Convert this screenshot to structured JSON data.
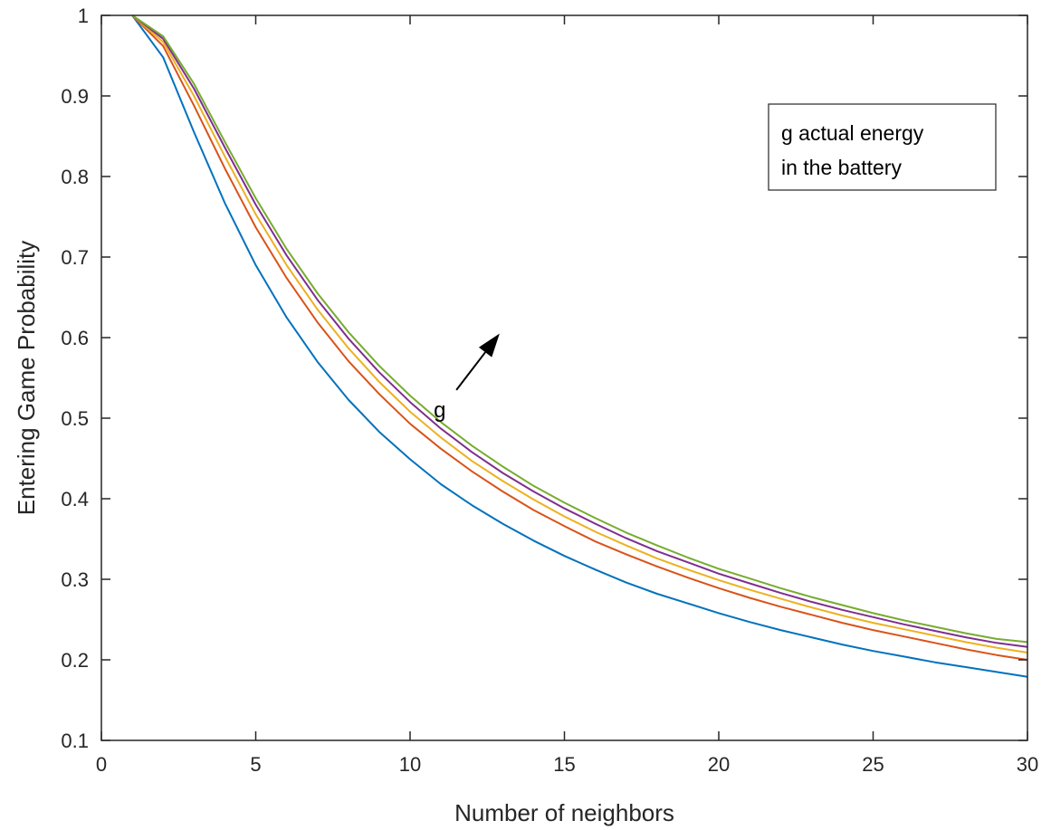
{
  "chart_data": {
    "type": "line",
    "title": "",
    "xlabel": "Number of neighbors",
    "ylabel": "Entering Game Probability",
    "xlim": [
      0,
      30
    ],
    "ylim": [
      0.1,
      1
    ],
    "x_ticks": [
      "0",
      "5",
      "10",
      "15",
      "20",
      "25",
      "30"
    ],
    "y_ticks": [
      "0.1",
      "0.2",
      "0.3",
      "0.4",
      "0.5",
      "0.6",
      "0.7",
      "0.8",
      "0.9",
      "1"
    ],
    "grid": false,
    "legend_box": {
      "lines": [
        "g actual energy",
        "in the battery"
      ],
      "position": "top-right"
    },
    "annotation": {
      "text": "g",
      "arrow": "up-right",
      "arrow_from": [
        11.5,
        0.535
      ],
      "arrow_to": [
        12.9,
        0.605
      ],
      "text_at": [
        11,
        0.51
      ]
    },
    "x": [
      1,
      2,
      3,
      4,
      5,
      6,
      7,
      8,
      9,
      10,
      11,
      12,
      13,
      14,
      15,
      16,
      17,
      18,
      19,
      20,
      21,
      22,
      23,
      24,
      25,
      26,
      27,
      28,
      29,
      30
    ],
    "series": [
      {
        "color": "#0072BD",
        "values": [
          1.0,
          0.948,
          0.855,
          0.767,
          0.69,
          0.625,
          0.57,
          0.523,
          0.483,
          0.449,
          0.418,
          0.392,
          0.369,
          0.348,
          0.329,
          0.312,
          0.296,
          0.282,
          0.27,
          0.258,
          0.247,
          0.237,
          0.228,
          0.219,
          0.211,
          0.204,
          0.197,
          0.191,
          0.185,
          0.179
        ]
      },
      {
        "color": "#D95319",
        "values": [
          1.0,
          0.962,
          0.888,
          0.81,
          0.737,
          0.674,
          0.619,
          0.571,
          0.53,
          0.493,
          0.462,
          0.434,
          0.409,
          0.386,
          0.366,
          0.347,
          0.331,
          0.316,
          0.302,
          0.289,
          0.277,
          0.266,
          0.256,
          0.246,
          0.237,
          0.229,
          0.221,
          0.213,
          0.206,
          0.2
        ]
      },
      {
        "color": "#EDB120",
        "values": [
          1.0,
          0.967,
          0.9,
          0.825,
          0.753,
          0.69,
          0.635,
          0.587,
          0.545,
          0.508,
          0.476,
          0.447,
          0.422,
          0.399,
          0.378,
          0.359,
          0.342,
          0.326,
          0.312,
          0.299,
          0.287,
          0.276,
          0.265,
          0.255,
          0.246,
          0.238,
          0.23,
          0.222,
          0.215,
          0.209
        ]
      },
      {
        "color": "#7E2F8E",
        "values": [
          1.0,
          0.971,
          0.909,
          0.836,
          0.765,
          0.702,
          0.647,
          0.599,
          0.557,
          0.52,
          0.487,
          0.458,
          0.432,
          0.409,
          0.388,
          0.369,
          0.351,
          0.335,
          0.321,
          0.307,
          0.295,
          0.283,
          0.272,
          0.262,
          0.253,
          0.244,
          0.236,
          0.228,
          0.221,
          0.216
        ]
      },
      {
        "color": "#77AC30",
        "values": [
          1.0,
          0.974,
          0.915,
          0.843,
          0.773,
          0.71,
          0.655,
          0.607,
          0.565,
          0.528,
          0.495,
          0.466,
          0.44,
          0.416,
          0.395,
          0.376,
          0.358,
          0.342,
          0.327,
          0.313,
          0.301,
          0.289,
          0.278,
          0.268,
          0.258,
          0.249,
          0.241,
          0.233,
          0.226,
          0.222
        ]
      }
    ]
  }
}
